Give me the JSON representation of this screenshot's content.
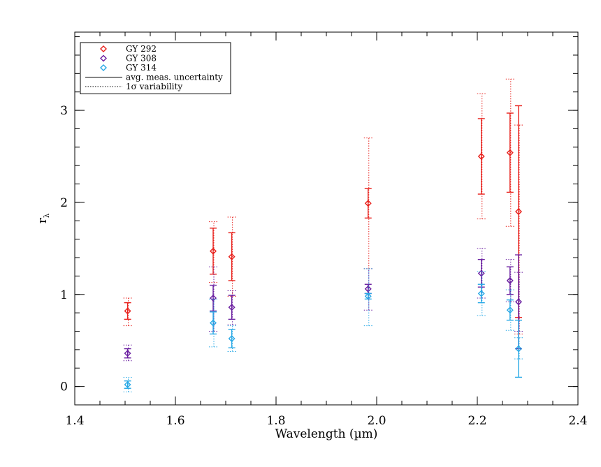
{
  "chart_data": {
    "type": "scatter",
    "title": "",
    "xlabel": "Wavelength (µm)",
    "ylabel": "r",
    "ylabel_subscript": "λ",
    "xlim": [
      1.4,
      2.4
    ],
    "ylim": [
      -0.2,
      3.85
    ],
    "x_ticks": [
      1.4,
      1.6,
      1.8,
      2.0,
      2.2,
      2.4
    ],
    "x_tick_labels": [
      "1.4",
      "1.6",
      "1.8",
      "2.0",
      "2.2",
      "2.4"
    ],
    "y_ticks": [
      0,
      1,
      2,
      3
    ],
    "y_tick_labels": [
      "0",
      "1",
      "2",
      "3"
    ],
    "grid": false,
    "legend_position": "top-left",
    "marker": "diamond",
    "series": [
      {
        "name": "GY 292",
        "color": "#e8211c",
        "points": [
          {
            "x": 1.505,
            "y": 0.82,
            "meas_err": 0.09,
            "var_lo": 0.66,
            "var_hi": 0.96
          },
          {
            "x": 1.675,
            "y": 1.47,
            "meas_err": 0.25,
            "var_lo": 1.13,
            "var_hi": 1.79
          },
          {
            "x": 1.712,
            "y": 1.41,
            "meas_err": 0.26,
            "var_lo": 0.98,
            "var_hi": 1.84
          },
          {
            "x": 1.983,
            "y": 1.99,
            "meas_err": 0.16,
            "var_lo": 1.28,
            "var_hi": 2.7
          },
          {
            "x": 2.208,
            "y": 2.5,
            "meas_err": 0.41,
            "var_lo": 1.82,
            "var_hi": 3.18
          },
          {
            "x": 2.265,
            "y": 2.54,
            "meas_err": 0.43,
            "var_lo": 1.74,
            "var_hi": 3.34
          },
          {
            "x": 2.282,
            "y": 1.9,
            "meas_err": 1.15,
            "var_lo": 0.57,
            "var_hi": 2.84
          }
        ]
      },
      {
        "name": "GY 308",
        "color": "#6a1fa0",
        "points": [
          {
            "x": 1.505,
            "y": 0.36,
            "meas_err": 0.05,
            "var_lo": 0.28,
            "var_hi": 0.45
          },
          {
            "x": 1.675,
            "y": 0.96,
            "meas_err": 0.14,
            "var_lo": 0.6,
            "var_hi": 1.3
          },
          {
            "x": 1.712,
            "y": 0.86,
            "meas_err": 0.13,
            "var_lo": 0.67,
            "var_hi": 1.04
          },
          {
            "x": 1.983,
            "y": 1.06,
            "meas_err": 0.05,
            "var_lo": 0.83,
            "var_hi": 1.28
          },
          {
            "x": 2.208,
            "y": 1.23,
            "meas_err": 0.15,
            "var_lo": 0.96,
            "var_hi": 1.5
          },
          {
            "x": 2.265,
            "y": 1.15,
            "meas_err": 0.15,
            "var_lo": 0.92,
            "var_hi": 1.38
          },
          {
            "x": 2.282,
            "y": 0.92,
            "meas_err": 0.51,
            "var_lo": 0.6,
            "var_hi": 1.24
          }
        ]
      },
      {
        "name": "GY 314",
        "color": "#29a9e6",
        "points": [
          {
            "x": 1.505,
            "y": 0.02,
            "meas_err": 0.04,
            "var_lo": -0.06,
            "var_hi": 0.1
          },
          {
            "x": 1.675,
            "y": 0.69,
            "meas_err": 0.12,
            "var_lo": 0.43,
            "var_hi": 0.95
          },
          {
            "x": 1.712,
            "y": 0.52,
            "meas_err": 0.1,
            "var_lo": 0.38,
            "var_hi": 0.66
          },
          {
            "x": 1.983,
            "y": 0.98,
            "meas_err": 0.03,
            "var_lo": 0.66,
            "var_hi": 1.28
          },
          {
            "x": 2.208,
            "y": 1.01,
            "meas_err": 0.1,
            "var_lo": 0.77,
            "var_hi": 1.25
          },
          {
            "x": 2.265,
            "y": 0.83,
            "meas_err": 0.11,
            "var_lo": 0.61,
            "var_hi": 1.05
          },
          {
            "x": 2.282,
            "y": 0.41,
            "meas_err": 0.31,
            "var_lo": 0.3,
            "var_hi": 0.53
          }
        ]
      }
    ],
    "legend": {
      "entries": [
        {
          "label": "GY 292",
          "kind": "marker",
          "color": "#e8211c"
        },
        {
          "label": "GY 308",
          "kind": "marker",
          "color": "#6a1fa0"
        },
        {
          "label": "GY 314",
          "kind": "marker",
          "color": "#29a9e6"
        },
        {
          "label": "avg. meas. uncertainty",
          "kind": "solid-line",
          "color": "#000000"
        },
        {
          "label": "1σ variability",
          "kind": "dotted-line",
          "color": "#000000"
        }
      ]
    }
  }
}
